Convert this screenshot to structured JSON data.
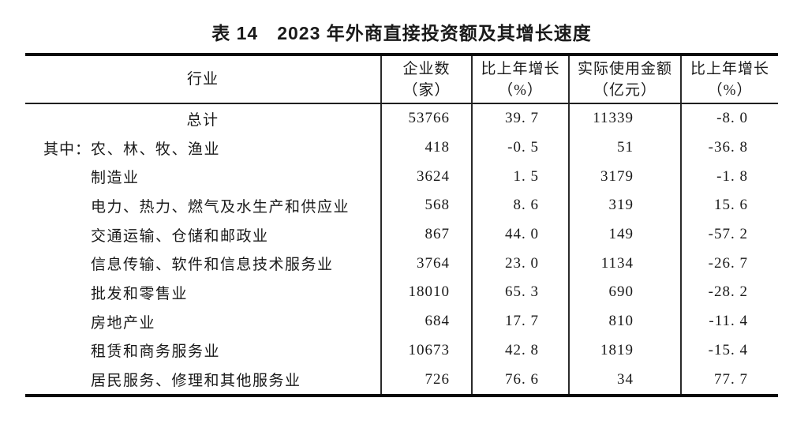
{
  "page": {
    "title": "表 14　2023 年外商直接投资额及其增长速度"
  },
  "table": {
    "columns": [
      {
        "label": "行业",
        "unit": ""
      },
      {
        "label": "企业数",
        "unit": "（家）"
      },
      {
        "label": "比上年增长",
        "unit": "（%）"
      },
      {
        "label": "实际使用金额",
        "unit": "（亿元）"
      },
      {
        "label": "比上年增长",
        "unit": "（%）"
      }
    ],
    "rows": [
      {
        "prefix": "",
        "industry": "总计",
        "align": "center",
        "enterprises": "53766",
        "enterprises_growth": "39.7",
        "amount_used": "11339",
        "amount_growth": "-8.0"
      },
      {
        "prefix": "其中：",
        "industry": "农、林、牧、渔业",
        "align": "left",
        "enterprises": "418",
        "enterprises_growth": "-0.5",
        "amount_used": "51",
        "amount_growth": "-36.8"
      },
      {
        "prefix": "",
        "industry": "制造业",
        "align": "left",
        "enterprises": "3624",
        "enterprises_growth": "1.5",
        "amount_used": "3179",
        "amount_growth": "-1.8"
      },
      {
        "prefix": "",
        "industry": "电力、热力、燃气及水生产和供应业",
        "align": "left",
        "enterprises": "568",
        "enterprises_growth": "8.6",
        "amount_used": "319",
        "amount_growth": "15.6"
      },
      {
        "prefix": "",
        "industry": "交通运输、仓储和邮政业",
        "align": "left",
        "enterprises": "867",
        "enterprises_growth": "44.0",
        "amount_used": "149",
        "amount_growth": "-57.2"
      },
      {
        "prefix": "",
        "industry": "信息传输、软件和信息技术服务业",
        "align": "left",
        "enterprises": "3764",
        "enterprises_growth": "23.0",
        "amount_used": "1134",
        "amount_growth": "-26.7"
      },
      {
        "prefix": "",
        "industry": "批发和零售业",
        "align": "left",
        "enterprises": "18010",
        "enterprises_growth": "65.3",
        "amount_used": "690",
        "amount_growth": "-28.2"
      },
      {
        "prefix": "",
        "industry": "房地产业",
        "align": "left",
        "enterprises": "684",
        "enterprises_growth": "17.7",
        "amount_used": "810",
        "amount_growth": "-11.4"
      },
      {
        "prefix": "",
        "industry": "租赁和商务服务业",
        "align": "left",
        "enterprises": "10673",
        "enterprises_growth": "42.8",
        "amount_used": "1819",
        "amount_growth": "-15.4"
      },
      {
        "prefix": "",
        "industry": "居民服务、修理和其他服务业",
        "align": "left",
        "enterprises": "726",
        "enterprises_growth": "76.6",
        "amount_used": "34",
        "amount_growth": "77.7"
      }
    ]
  },
  "colors": {
    "text": "#1a1a1a",
    "rule_heavy": "#0a0a0a",
    "rule_light": "#2a2a2a",
    "background": "#ffffff"
  }
}
